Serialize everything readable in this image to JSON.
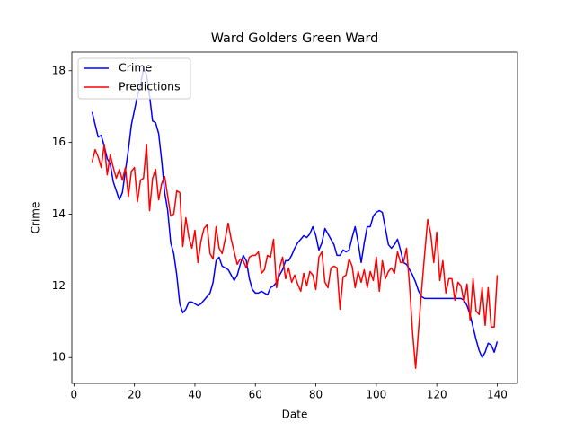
{
  "chart_data": {
    "type": "line",
    "title": "Ward Golders Green Ward",
    "xlabel": "Date",
    "ylabel": "Crime",
    "x": [
      6,
      7,
      8,
      9,
      10,
      11,
      12,
      13,
      14,
      15,
      16,
      17,
      18,
      19,
      20,
      21,
      22,
      23,
      24,
      25,
      26,
      27,
      28,
      29,
      30,
      31,
      32,
      33,
      34,
      35,
      36,
      37,
      38,
      39,
      40,
      41,
      42,
      43,
      44,
      45,
      46,
      47,
      48,
      49,
      50,
      51,
      52,
      53,
      54,
      55,
      56,
      57,
      58,
      59,
      60,
      61,
      62,
      63,
      64,
      65,
      66,
      67,
      68,
      69,
      70,
      71,
      72,
      73,
      74,
      75,
      76,
      77,
      78,
      79,
      80,
      81,
      82,
      83,
      84,
      85,
      86,
      87,
      88,
      89,
      90,
      91,
      92,
      93,
      94,
      95,
      96,
      97,
      98,
      99,
      100,
      101,
      102,
      103,
      104,
      105,
      106,
      107,
      108,
      109,
      110,
      111,
      112,
      113,
      114,
      115,
      116,
      117,
      118,
      119,
      120,
      121,
      122,
      123,
      124,
      125,
      126,
      127,
      128,
      129,
      130,
      131,
      132,
      133,
      134,
      135,
      136,
      137,
      138,
      139,
      140
    ],
    "series": [
      {
        "name": "Crime",
        "color": "#0000ff",
        "values": [
          16.85,
          16.5,
          16.15,
          16.2,
          15.9,
          15.55,
          15.4,
          14.9,
          14.65,
          14.4,
          14.6,
          15.2,
          15.8,
          16.5,
          16.9,
          17.3,
          17.6,
          18.05,
          17.9,
          17.3,
          16.6,
          16.55,
          16.25,
          15.5,
          14.6,
          14.1,
          13.2,
          12.9,
          12.3,
          11.5,
          11.25,
          11.35,
          11.55,
          11.55,
          11.5,
          11.45,
          11.5,
          11.6,
          11.7,
          11.8,
          12.1,
          12.7,
          12.8,
          12.55,
          12.5,
          12.45,
          12.3,
          12.15,
          12.3,
          12.6,
          12.85,
          12.7,
          12.2,
          11.9,
          11.8,
          11.8,
          11.85,
          11.8,
          11.75,
          11.95,
          12.0,
          12.1,
          12.3,
          12.45,
          12.7,
          12.7,
          12.85,
          13.05,
          13.2,
          13.3,
          13.4,
          13.35,
          13.45,
          13.65,
          13.4,
          13.0,
          13.2,
          13.6,
          13.45,
          13.3,
          13.15,
          12.85,
          12.85,
          13.0,
          12.95,
          13.0,
          13.35,
          13.65,
          13.2,
          12.65,
          13.2,
          13.65,
          13.65,
          13.95,
          14.05,
          14.1,
          14.05,
          13.6,
          13.15,
          13.05,
          13.15,
          13.3,
          13.0,
          12.65,
          12.6,
          12.45,
          12.3,
          12.1,
          11.85,
          11.7,
          11.65,
          11.65,
          11.65,
          11.65,
          11.65,
          11.65,
          11.65,
          11.65,
          11.65,
          11.65,
          11.65,
          11.65,
          11.65,
          11.6,
          11.45,
          11.2,
          10.85,
          10.5,
          10.2,
          10.0,
          10.15,
          10.4,
          10.35,
          10.15,
          10.45
        ]
      },
      {
        "name": "Predictions",
        "color": "#ff0000",
        "values": [
          15.45,
          15.8,
          15.6,
          15.3,
          15.95,
          15.1,
          15.65,
          15.3,
          15.0,
          15.25,
          14.95,
          15.3,
          14.5,
          15.2,
          15.3,
          14.35,
          14.95,
          15.0,
          15.95,
          14.1,
          15.0,
          15.25,
          14.4,
          14.85,
          15.05,
          14.5,
          13.95,
          14.0,
          14.65,
          14.6,
          13.1,
          13.9,
          13.35,
          13.05,
          13.55,
          12.65,
          13.25,
          13.6,
          13.7,
          12.9,
          12.75,
          13.65,
          13.05,
          12.9,
          13.3,
          13.75,
          13.3,
          12.95,
          12.6,
          12.75,
          12.7,
          12.5,
          12.8,
          12.85,
          12.85,
          12.95,
          12.35,
          12.45,
          12.85,
          12.8,
          13.3,
          11.95,
          12.5,
          12.8,
          12.2,
          12.5,
          12.1,
          12.3,
          12.05,
          11.85,
          12.35,
          12.0,
          12.4,
          12.3,
          11.9,
          12.8,
          12.95,
          12.1,
          11.95,
          12.5,
          12.55,
          12.5,
          11.35,
          12.25,
          12.3,
          12.75,
          12.55,
          11.95,
          12.4,
          12.1,
          12.45,
          11.95,
          12.4,
          12.15,
          12.8,
          11.85,
          12.7,
          12.2,
          12.4,
          12.5,
          12.35,
          12.95,
          12.65,
          12.65,
          13.05,
          12.0,
          10.7,
          9.7,
          10.8,
          11.9,
          12.9,
          13.85,
          13.45,
          12.65,
          13.5,
          12.15,
          12.7,
          11.8,
          12.2,
          12.2,
          11.6,
          12.1,
          12.0,
          11.55,
          12.05,
          11.05,
          12.2,
          11.3,
          11.2,
          11.95,
          10.9,
          11.95,
          10.85,
          10.85,
          12.3
        ]
      }
    ],
    "xlim": [
      -0.7,
      146.7
    ],
    "ylim": [
      9.28,
      18.52
    ],
    "xticks": [
      0,
      20,
      40,
      60,
      80,
      100,
      120,
      140
    ],
    "yticks": [
      10,
      12,
      14,
      16,
      18
    ],
    "legend": "upper left"
  }
}
